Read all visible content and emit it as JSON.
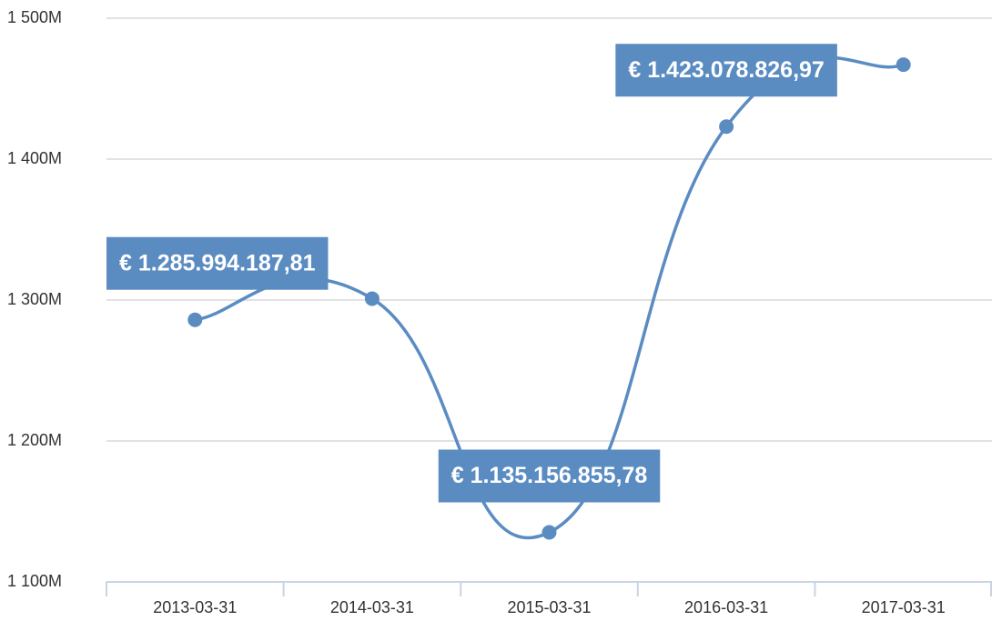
{
  "chart_data": {
    "type": "line",
    "categories": [
      "2013-03-31",
      "2014-03-31",
      "2015-03-31",
      "2016-03-31",
      "2017-03-31"
    ],
    "series": [
      {
        "color": "#5a8cc2",
        "values": [
          1285994187.81,
          1301000000,
          1135156855.78,
          1423078826.97,
          1467000000
        ],
        "value_labels": [
          "€ 1.285.994.187,81",
          null,
          "€ 1.135.156.855,78",
          "€ 1.423.078.826,97",
          null
        ]
      }
    ],
    "ylim": [
      1100000000,
      1500000000
    ],
    "yticks": [
      {
        "value": 1100000000,
        "label": "1 100M"
      },
      {
        "value": 1200000000,
        "label": "1 200M"
      },
      {
        "value": 1300000000,
        "label": "1 300M"
      },
      {
        "value": 1400000000,
        "label": "1 400M"
      },
      {
        "value": 1500000000,
        "label": "1 500M"
      }
    ],
    "grid": true
  }
}
